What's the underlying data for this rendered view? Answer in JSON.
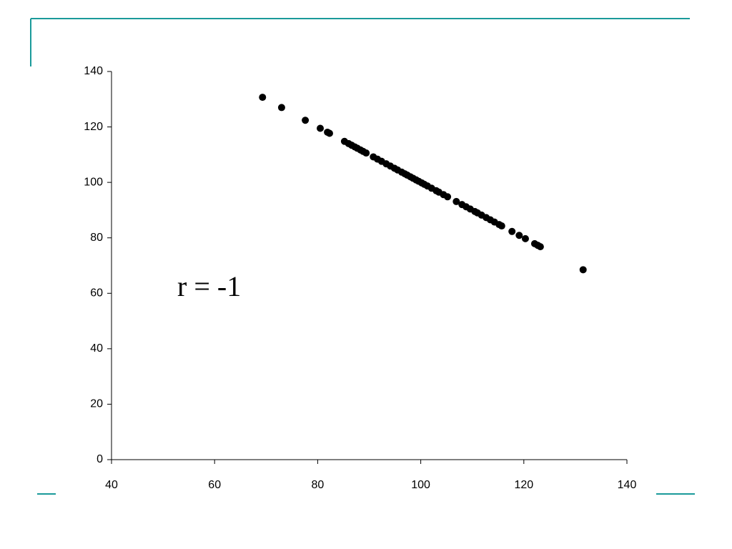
{
  "chart_data": {
    "type": "scatter",
    "annotation": "r = -1",
    "color": "#000000",
    "x": [
      69.3,
      73.0,
      77.6,
      80.5,
      81.9,
      82.3,
      85.2,
      86.0,
      86.6,
      87.2,
      87.7,
      88.3,
      88.8,
      89.4,
      90.8,
      91.6,
      92.4,
      93.3,
      94.1,
      94.9,
      95.5,
      96.3,
      96.9,
      97.4,
      98.0,
      98.5,
      99.1,
      99.6,
      100.2,
      100.7,
      101.3,
      102.1,
      103.0,
      103.5,
      104.4,
      105.2,
      106.9,
      108.0,
      108.8,
      109.6,
      110.5,
      111.0,
      111.8,
      112.7,
      113.5,
      114.3,
      115.2,
      115.7,
      117.7,
      119.1,
      120.3,
      122.1,
      122.7,
      123.2,
      131.5
    ],
    "values": [
      130.7,
      127.0,
      122.4,
      119.5,
      118.1,
      117.7,
      114.8,
      114.0,
      113.4,
      112.8,
      112.3,
      111.7,
      111.2,
      110.6,
      109.2,
      108.4,
      107.6,
      106.7,
      105.9,
      105.1,
      104.5,
      103.7,
      103.1,
      102.6,
      102.0,
      101.5,
      100.9,
      100.4,
      99.8,
      99.3,
      98.7,
      97.9,
      97.0,
      96.5,
      95.6,
      94.8,
      93.1,
      92.0,
      91.2,
      90.4,
      89.5,
      89.0,
      88.2,
      87.3,
      86.5,
      85.7,
      84.8,
      84.3,
      82.3,
      80.9,
      79.7,
      77.9,
      77.3,
      76.8,
      68.5
    ],
    "xlim": [
      40,
      140
    ],
    "xticks": [
      40,
      60,
      80,
      100,
      120,
      140
    ],
    "ylim": [
      0,
      140
    ],
    "yticks": [
      0,
      20,
      40,
      60,
      80,
      100,
      120,
      140
    ]
  }
}
